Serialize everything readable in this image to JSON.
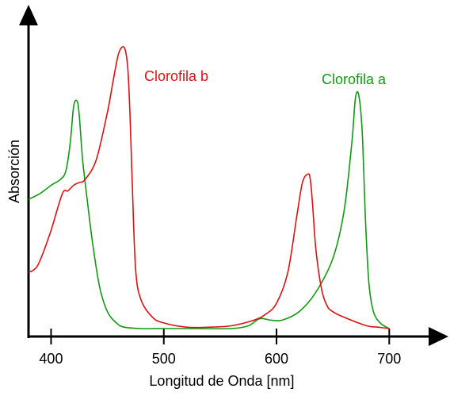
{
  "chart_data": {
    "type": "line",
    "title": "",
    "xlabel": "Longitud de Onda [nm]",
    "ylabel": "Absorción",
    "xlim": [
      380,
      730
    ],
    "ylim": [
      0,
      1
    ],
    "xticks": [
      400,
      500,
      600,
      700
    ],
    "grid": false,
    "series": [
      {
        "name": "Clorofila a",
        "color": "#119911",
        "x": [
          380,
          390,
          400,
          408,
          413,
          417,
          420,
          423,
          425,
          428,
          432,
          437,
          443,
          450,
          458,
          465,
          480,
          500,
          530,
          560,
          575,
          585,
          595,
          605,
          620,
          635,
          650,
          660,
          667,
          670,
          673,
          676,
          679,
          682,
          686,
          692,
          700
        ],
        "y": [
          0.46,
          0.48,
          0.51,
          0.53,
          0.56,
          0.66,
          0.79,
          0.81,
          0.76,
          0.6,
          0.46,
          0.3,
          0.15,
          0.06,
          0.02,
          0.005,
          0.0,
          0.0,
          0.0,
          0.0,
          0.01,
          0.035,
          0.03,
          0.03,
          0.06,
          0.13,
          0.25,
          0.42,
          0.67,
          0.82,
          0.83,
          0.7,
          0.38,
          0.16,
          0.06,
          0.02,
          0.0
        ]
      },
      {
        "name": "Clorofila b",
        "color": "#dd1111",
        "x": [
          380,
          385,
          390,
          400,
          410,
          415,
          420,
          425,
          430,
          440,
          450,
          455,
          460,
          465,
          468,
          470,
          472,
          475,
          480,
          490,
          500,
          520,
          540,
          560,
          580,
          590,
          600,
          610,
          618,
          623,
          628,
          630,
          632,
          635,
          640,
          645,
          650,
          660,
          680,
          690,
          700
        ],
        "y": [
          0.2,
          0.21,
          0.24,
          0.35,
          0.48,
          0.49,
          0.51,
          0.52,
          0.53,
          0.6,
          0.77,
          0.88,
          0.98,
          1.0,
          0.93,
          0.76,
          0.52,
          0.21,
          0.1,
          0.04,
          0.02,
          0.005,
          0.005,
          0.01,
          0.03,
          0.05,
          0.09,
          0.2,
          0.4,
          0.52,
          0.55,
          0.53,
          0.44,
          0.28,
          0.14,
          0.08,
          0.06,
          0.04,
          0.01,
          0.005,
          0.0
        ]
      }
    ]
  }
}
